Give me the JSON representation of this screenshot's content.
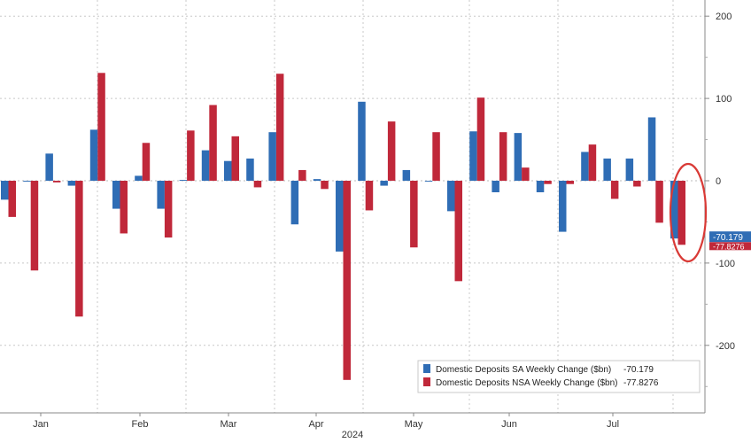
{
  "chart_data": {
    "type": "bar",
    "title": "",
    "xlabel": "2024",
    "ylabel": "",
    "ylim": [
      -270,
      215
    ],
    "y_ticks": [
      200,
      100,
      0,
      -100,
      -200
    ],
    "grid": true,
    "legend_position": "bottom-right",
    "month_labels": [
      "Jan",
      "Feb",
      "Mar",
      "Apr",
      "May",
      "Jun",
      "Jul"
    ],
    "series": [
      {
        "name": "Domestic Deposits SA Weekly Change ($bn)",
        "last_value_label": "-70.179",
        "color": "#2f6db5",
        "values": [
          -23,
          -1,
          33,
          -6,
          62,
          -34,
          6,
          -34,
          1,
          37,
          24,
          27,
          59,
          -53,
          2,
          -86,
          96,
          -6,
          13,
          -1,
          -37,
          60,
          -14,
          58,
          -14,
          -62,
          35,
          27,
          27,
          77,
          -70.179
        ]
      },
      {
        "name": "Domestic Deposits NSA Weekly Change ($bn)",
        "last_value_label": "-77.8276",
        "color": "#c0283a",
        "values": [
          -44,
          -109,
          -2,
          -165,
          131,
          -64,
          46,
          -69,
          61,
          92,
          54,
          -8,
          130,
          13,
          -10,
          -242,
          -36,
          72,
          -81,
          59,
          -122,
          101,
          59,
          16,
          -4,
          -4,
          44,
          -22,
          -7,
          -51,
          -77.8276
        ]
      }
    ],
    "annotation": "red-ellipse-highlight-latest-week",
    "legend_entries": [
      {
        "label": "Domestic Deposits SA Weekly Change ($bn)",
        "value": "-70.179"
      },
      {
        "label": "Domestic Deposits NSA Weekly Change ($bn)",
        "value": "-77.8276"
      }
    ],
    "colors": {
      "sa": "#2f6db5",
      "nsa": "#c0283a",
      "highlight": "#d93a36"
    }
  }
}
